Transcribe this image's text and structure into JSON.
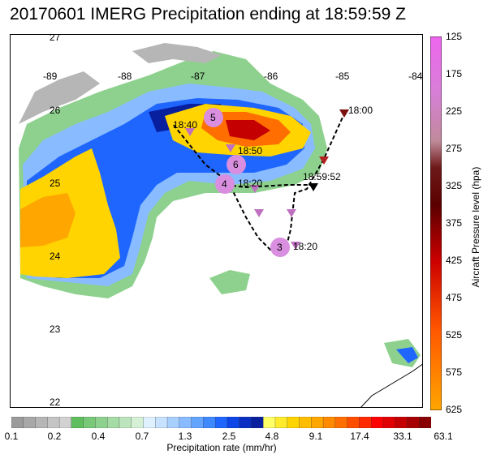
{
  "title": "20170601 IMERG Precipitation ending at 18:59:59 Z",
  "map": {
    "lon_labels": [
      "-89",
      "-88",
      "-87",
      "-86",
      "-85",
      "-84"
    ],
    "lat_labels": [
      "27",
      "26",
      "25",
      "24",
      "23",
      "22"
    ],
    "times": {
      "t1": "18:00",
      "t2": "18:40",
      "t3": "18:50",
      "t4": "18:20",
      "t5": "18:59:52",
      "t6": "18:20"
    },
    "markers": [
      "5",
      "6",
      "4",
      "3"
    ]
  },
  "colorbar": {
    "title": "Precipitation rate (mm/hr)",
    "ticks": [
      "0.1",
      "0.2",
      "0.4",
      "0.7",
      "1.3",
      "2.5",
      "4.8",
      "9.1",
      "17.4",
      "33.1",
      "63.1"
    ],
    "colors": [
      "#9b9b9b",
      "#a8a8a8",
      "#b6b6b6",
      "#c4c4c4",
      "#d2d2d2",
      "#5fbf5f",
      "#78c878",
      "#8ed18e",
      "#a5dba5",
      "#bde5bd",
      "#d6f0d6",
      "#dff0ff",
      "#c7e2ff",
      "#a7d0ff",
      "#88bbff",
      "#62a5ff",
      "#3f89ff",
      "#1f66ff",
      "#0d45e6",
      "#0a2fc2",
      "#081f9e",
      "#ffff66",
      "#ffeb2b",
      "#ffd400",
      "#ffbd00",
      "#ffa600",
      "#ff8a00",
      "#ff6e00",
      "#ff4d00",
      "#ff2a00",
      "#ff0000",
      "#e10000",
      "#c40000",
      "#a60000",
      "#880000"
    ]
  },
  "pressure_bar": {
    "title": "Aircraft Pressure level (hpa)",
    "ticks": [
      "125",
      "175",
      "225",
      "275",
      "325",
      "375",
      "425",
      "475",
      "525",
      "575",
      "625"
    ]
  }
}
